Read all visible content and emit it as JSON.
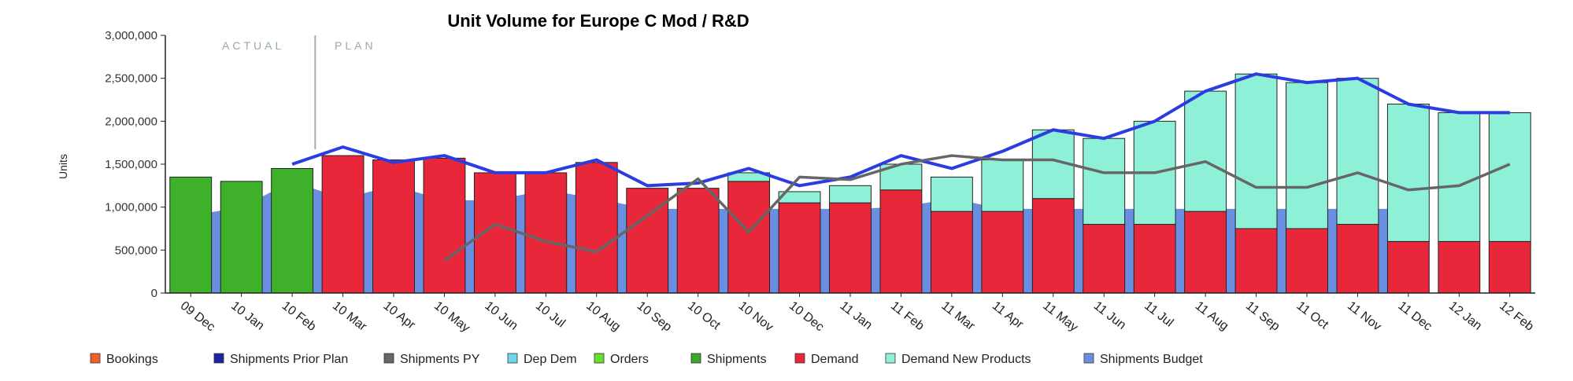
{
  "chart_data": {
    "type": "bar",
    "title": "Unit Volume for  Europe C Mod / R&D",
    "ylabel": "Units",
    "xlabel": "",
    "ylim": [
      0,
      3000000
    ],
    "yticks": [
      0,
      500000,
      1000000,
      1500000,
      2000000,
      2500000,
      3000000
    ],
    "ytick_labels": [
      "0",
      "500,000",
      "1,000,000",
      "1,500,000",
      "2,000,000",
      "2,500,000",
      "3,000,000"
    ],
    "phases": {
      "actual": "ACTUAL",
      "plan": "PLAN"
    },
    "categories": [
      "09 Dec",
      "10 Jan",
      "10 Feb",
      "10 Mar",
      "10 Apr",
      "10 May",
      "10 Jun",
      "10 Jul",
      "10 Aug",
      "10 Sep",
      "10 Oct",
      "10 Nov",
      "10 Dec",
      "11 Jan",
      "11 Feb",
      "11 Mar",
      "11 Apr",
      "11 May",
      "11 Jun",
      "11 Jul",
      "11 Aug",
      "11 Sep",
      "11 Oct",
      "11 Nov",
      "11 Dec",
      "12 Jan",
      "12 Feb"
    ],
    "series": [
      {
        "name": "Shipments Budget",
        "kind": "area",
        "color": "#6b8fe0",
        "values": [
          900000,
          1000000,
          1300000,
          1100000,
          1250000,
          1080000,
          1080000,
          1200000,
          1100000,
          980000,
          980000,
          980000,
          980000,
          980000,
          1000000,
          1100000,
          980000,
          980000,
          980000,
          980000,
          980000,
          980000,
          980000,
          980000,
          980000,
          null,
          null
        ]
      },
      {
        "name": "Shipments",
        "kind": "bar",
        "color": "#3fb02a",
        "values": [
          1350000,
          1300000,
          1450000,
          null,
          null,
          null,
          null,
          null,
          null,
          null,
          null,
          null,
          null,
          null,
          null,
          null,
          null,
          null,
          null,
          null,
          null,
          null,
          null,
          null,
          null,
          null,
          null
        ]
      },
      {
        "name": "Demand",
        "kind": "bar",
        "color": "#e8283a",
        "values": [
          null,
          null,
          null,
          1600000,
          1550000,
          1570000,
          1400000,
          1400000,
          1520000,
          1220000,
          1220000,
          1300000,
          1050000,
          1050000,
          1200000,
          950000,
          950000,
          1100000,
          800000,
          800000,
          950000,
          750000,
          750000,
          800000,
          600000,
          600000,
          600000
        ]
      },
      {
        "name": "Demand New Products",
        "kind": "bar",
        "color": "#8ff0d8",
        "values": [
          null,
          null,
          null,
          0,
          0,
          0,
          0,
          0,
          0,
          0,
          0,
          100000,
          130000,
          200000,
          300000,
          400000,
          600000,
          800000,
          1000000,
          1200000,
          1400000,
          1800000,
          1700000,
          1700000,
          1600000,
          1500000,
          1500000
        ]
      },
      {
        "name": "Shipments Prior Plan",
        "kind": "line",
        "color": "#2b3de0",
        "values": [
          null,
          null,
          1500000,
          1700000,
          1520000,
          1600000,
          1400000,
          1400000,
          1550000,
          1250000,
          1280000,
          1450000,
          1250000,
          1350000,
          1600000,
          1450000,
          1650000,
          1900000,
          1800000,
          2000000,
          2350000,
          2550000,
          2450000,
          2500000,
          2200000,
          2100000,
          2100000
        ]
      },
      {
        "name": "Shipments PY",
        "kind": "line",
        "color": "#666666",
        "values": [
          null,
          null,
          null,
          null,
          null,
          380000,
          800000,
          600000,
          480000,
          900000,
          1330000,
          710000,
          1350000,
          1320000,
          1500000,
          1600000,
          1550000,
          1550000,
          1400000,
          1400000,
          1530000,
          1230000,
          1230000,
          1400000,
          1200000,
          1250000,
          1500000
        ]
      }
    ],
    "legend": [
      {
        "name": "Bookings",
        "color": "#f0602a"
      },
      {
        "name": "Shipments Prior Plan",
        "color": "#1c23a0"
      },
      {
        "name": "Shipments PY",
        "color": "#666666"
      },
      {
        "name": "Dep Dem",
        "color": "#6fd6f0"
      },
      {
        "name": "Orders",
        "color": "#66e030"
      },
      {
        "name": "Shipments",
        "color": "#3aa828"
      },
      {
        "name": "Demand",
        "color": "#e8283a"
      },
      {
        "name": "Demand New Products",
        "color": "#8ff0d8"
      },
      {
        "name": "Shipments Budget",
        "color": "#6b8fe0"
      }
    ],
    "legend_position": "bottom"
  }
}
